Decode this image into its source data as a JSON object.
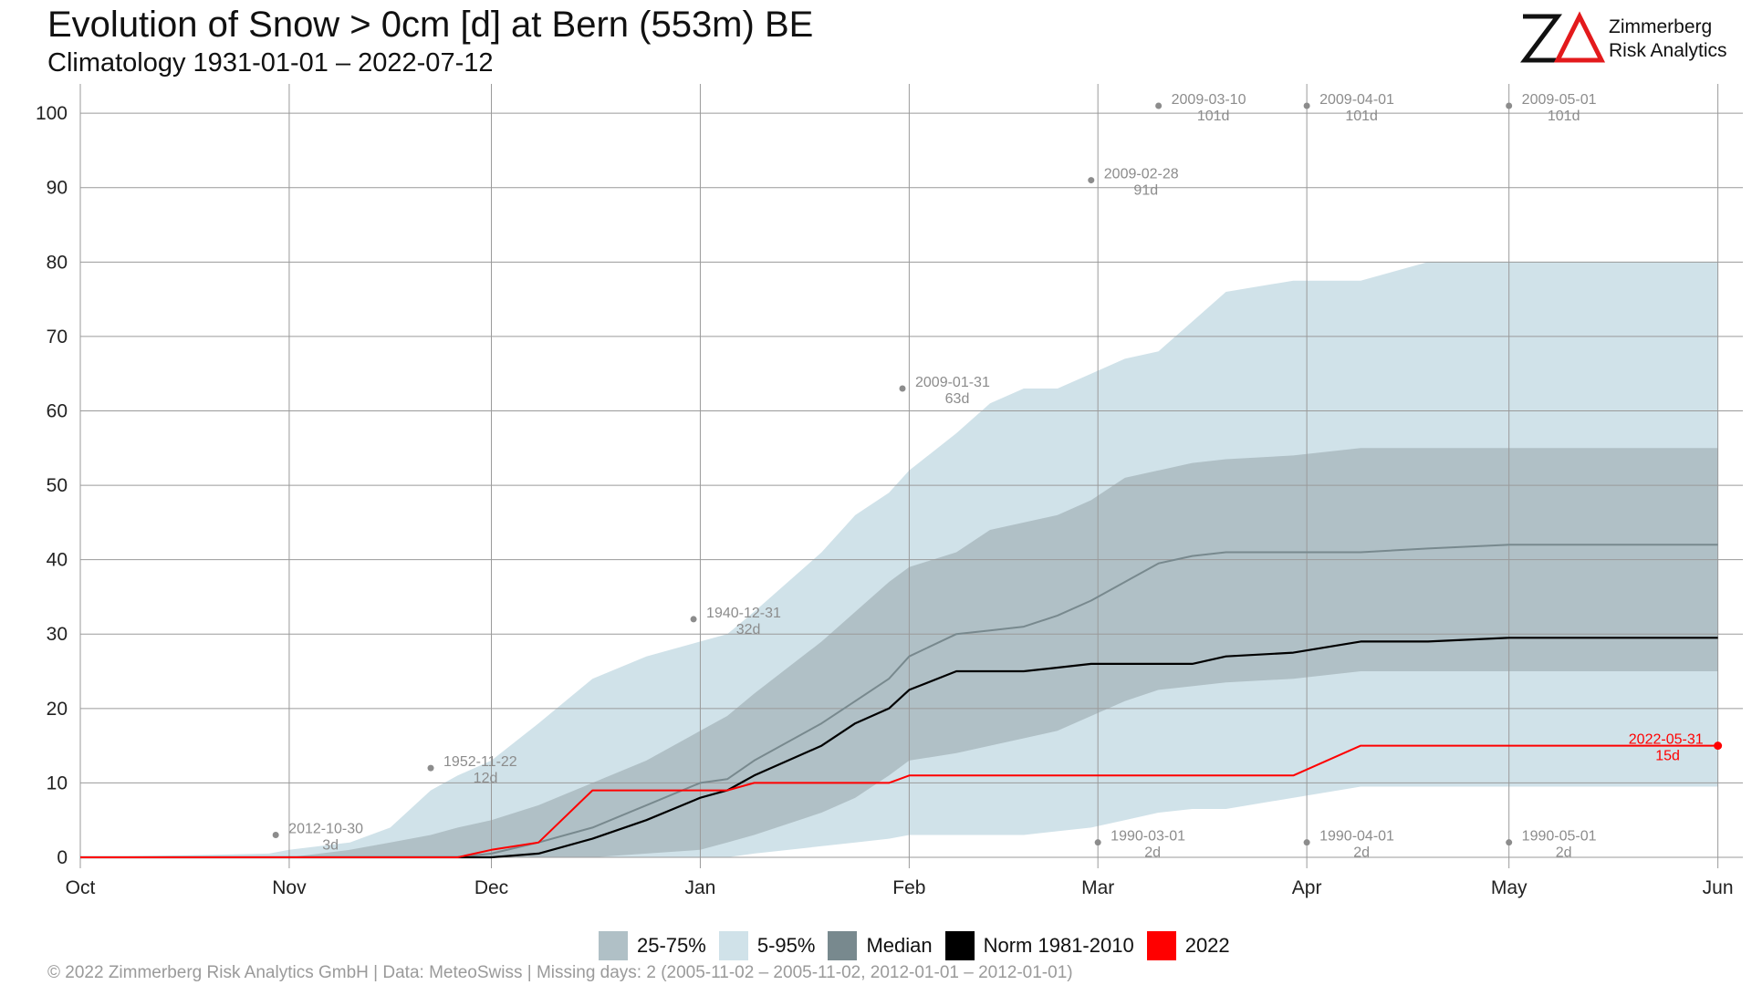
{
  "header": {
    "title": "Evolution of Snow > 0cm [d] at Bern (553m) BE",
    "subtitle": "Climatology 1931-01-01 – 2022-07-12"
  },
  "logo": {
    "line1": "Zimmerberg",
    "line2": "Risk Analytics",
    "accent_color": "#e31a1c"
  },
  "legend": [
    {
      "label": "25-75%",
      "color": "#b0c0c6"
    },
    {
      "label": "5-95%",
      "color": "#d0e2e9"
    },
    {
      "label": "Median",
      "color": "#78898e"
    },
    {
      "label": "Norm 1981-2010",
      "color": "#000000"
    },
    {
      "label": "2022",
      "color": "#ff0000"
    }
  ],
  "footer": "©  2022 Zimmerberg Risk Analytics GmbH | Data: MeteoSwiss | Missing days: 2 (2005-11-02 – 2005-11-02, 2012-01-01 – 2012-01-01)",
  "chart_data": {
    "type": "area",
    "x_unit": "day of snow season (0 = Oct 1)",
    "ylim": [
      0,
      101
    ],
    "xlim": [
      0,
      244
    ],
    "yticks": [
      0,
      10,
      20,
      30,
      40,
      50,
      60,
      70,
      80,
      90,
      100
    ],
    "xticks": [
      {
        "label": "Oct",
        "x": 0
      },
      {
        "label": "Nov",
        "x": 31
      },
      {
        "label": "Dec",
        "x": 61
      },
      {
        "label": "Jan",
        "x": 92
      },
      {
        "label": "Feb",
        "x": 123
      },
      {
        "label": "Mar",
        "x": 151
      },
      {
        "label": "Apr",
        "x": 182
      },
      {
        "label": "May",
        "x": 212
      },
      {
        "label": "Jun",
        "x": 243
      }
    ],
    "grid": true,
    "colors": {
      "p5_95": "#d0e2e9",
      "p25_75": "#b0c0c6",
      "median": "#78898e",
      "norm": "#000000",
      "y2022": "#ff0000",
      "records": "#8c8c8c"
    },
    "x": [
      0,
      28,
      31,
      40,
      46,
      52,
      56,
      61,
      68,
      76,
      84,
      92,
      96,
      100,
      110,
      115,
      120,
      123,
      130,
      135,
      140,
      145,
      150,
      155,
      160,
      165,
      170,
      180,
      190,
      200,
      212,
      220,
      243
    ],
    "series": [
      {
        "name": "5-95%",
        "key": "p95",
        "values": [
          0,
          0.5,
          1,
          2,
          4,
          9,
          11,
          13,
          18,
          24,
          27,
          29,
          30,
          33,
          41,
          46,
          49,
          52,
          57,
          61,
          63,
          63,
          65,
          67,
          68,
          72,
          76,
          77.5,
          77.5,
          80,
          80,
          80,
          80
        ]
      },
      {
        "name": "5-95%",
        "key": "p05",
        "values": [
          0,
          0,
          0,
          0,
          0,
          0,
          0,
          0,
          0,
          0,
          0,
          0,
          0,
          0.5,
          1.5,
          2,
          2.5,
          3,
          3,
          3,
          3,
          3.5,
          4,
          5,
          6,
          6.5,
          6.5,
          8,
          9.5,
          9.5,
          9.5,
          9.5,
          9.5
        ]
      },
      {
        "name": "25-75%",
        "key": "p75",
        "values": [
          0,
          0,
          0,
          1,
          2,
          3,
          4,
          5,
          7,
          10,
          13,
          17,
          19,
          22,
          29,
          33,
          37,
          39,
          41,
          44,
          45,
          46,
          48,
          51,
          52,
          53,
          53.5,
          54,
          55,
          55,
          55,
          55,
          55
        ]
      },
      {
        "name": "25-75%",
        "key": "p25",
        "values": [
          0,
          0,
          0,
          0,
          0,
          0,
          0,
          0,
          0,
          0,
          0.5,
          1,
          2,
          3,
          6,
          8,
          11,
          13,
          14,
          15,
          16,
          17,
          19,
          21,
          22.5,
          23,
          23.5,
          24,
          25,
          25,
          25,
          25,
          25
        ]
      },
      {
        "name": "Median",
        "key": "median",
        "values": [
          0,
          0,
          0,
          0,
          0,
          0,
          0,
          0.5,
          2,
          4,
          7,
          10,
          10.5,
          13,
          18,
          21,
          24,
          27,
          30,
          30.5,
          31,
          32.5,
          34.5,
          37,
          39.5,
          40.5,
          41,
          41,
          41,
          41.5,
          42,
          42,
          42
        ]
      },
      {
        "name": "Norm 1981-2010",
        "key": "norm",
        "values": [
          0,
          0,
          0,
          0,
          0,
          0,
          0,
          0,
          0.5,
          2.5,
          5,
          8,
          9,
          11,
          15,
          18,
          20,
          22.5,
          25,
          25,
          25,
          25.5,
          26,
          26,
          26,
          26,
          27,
          27.5,
          29,
          29,
          29.5,
          29.5,
          29.5
        ]
      },
      {
        "name": "2022",
        "key": "y2022",
        "values": [
          0,
          0,
          0,
          0,
          0,
          0,
          0,
          1,
          2,
          9,
          9,
          9,
          9,
          10,
          10,
          10,
          10,
          11,
          11,
          11,
          11,
          11,
          11,
          11,
          11,
          11,
          11,
          11,
          15,
          15,
          15,
          15,
          15
        ]
      }
    ],
    "annotations": [
      {
        "date": "2012-10-30",
        "value_label": "3d",
        "x": 29,
        "y": 3,
        "kind": "max"
      },
      {
        "date": "1952-11-22",
        "value_label": "12d",
        "x": 52,
        "y": 12,
        "kind": "max"
      },
      {
        "date": "1940-12-31",
        "value_label": "32d",
        "x": 91,
        "y": 32,
        "kind": "max"
      },
      {
        "date": "2009-01-31",
        "value_label": "63d",
        "x": 122,
        "y": 63,
        "kind": "max"
      },
      {
        "date": "2009-02-28",
        "value_label": "91d",
        "x": 150,
        "y": 91,
        "kind": "max"
      },
      {
        "date": "2009-03-10",
        "value_label": "101d",
        "x": 160,
        "y": 101,
        "kind": "max"
      },
      {
        "date": "2009-04-01",
        "value_label": "101d",
        "x": 182,
        "y": 101,
        "kind": "max"
      },
      {
        "date": "2009-05-01",
        "value_label": "101d",
        "x": 212,
        "y": 101,
        "kind": "max"
      },
      {
        "date": "1990-03-01",
        "value_label": "2d",
        "x": 151,
        "y": 2,
        "kind": "min"
      },
      {
        "date": "1990-04-01",
        "value_label": "2d",
        "x": 182,
        "y": 2,
        "kind": "min"
      },
      {
        "date": "1990-05-01",
        "value_label": "2d",
        "x": 212,
        "y": 2,
        "kind": "min"
      },
      {
        "date": "2022-05-31",
        "value_label": "15d",
        "x": 243,
        "y": 15,
        "kind": "current"
      }
    ]
  }
}
